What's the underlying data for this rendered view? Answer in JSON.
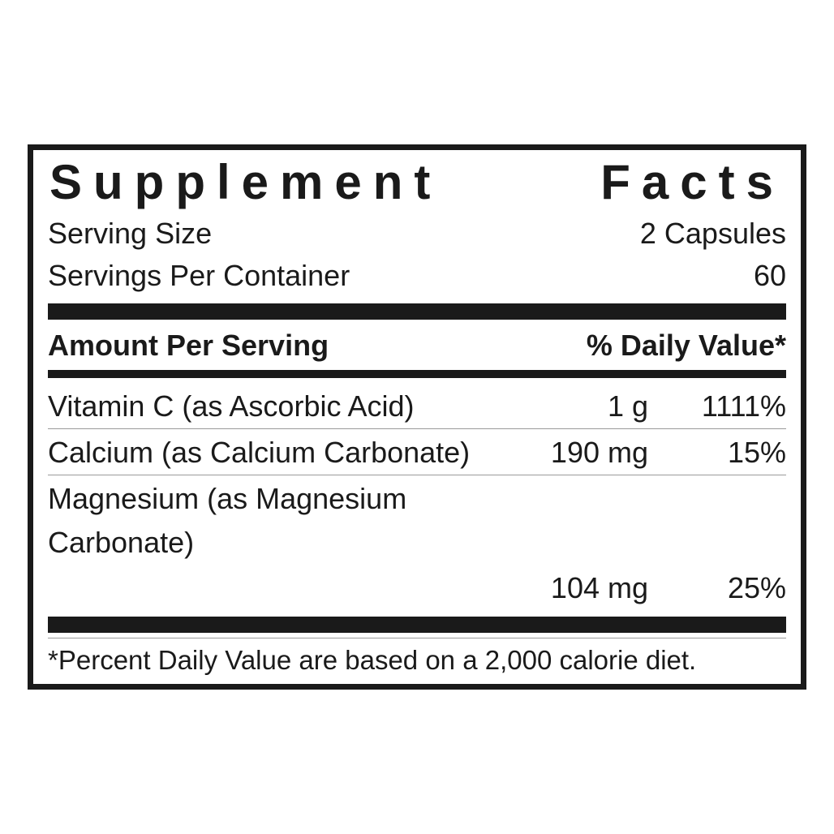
{
  "title": "Supplement Facts",
  "serving": {
    "size_label": "Serving Size",
    "size_value": "2 Capsules",
    "per_label": "Servings Per Container",
    "per_value": "60"
  },
  "header": {
    "amount": "Amount Per Serving",
    "dv": "% Daily Value*"
  },
  "nutrients": [
    {
      "name": "Vitamin C (as Ascorbic Acid)",
      "amount": "1 g",
      "dv": "1111%"
    },
    {
      "name": "Calcium (as Calcium Carbonate)",
      "amount": "190 mg",
      "dv": "15%"
    },
    {
      "name": "Magnesium (as Magnesium Carbonate)",
      "amount": "",
      "dv": ""
    },
    {
      "name": "",
      "amount": "104 mg",
      "dv": "25%"
    }
  ],
  "footnote": "*Percent Daily Value are based on a 2,000 calorie diet."
}
